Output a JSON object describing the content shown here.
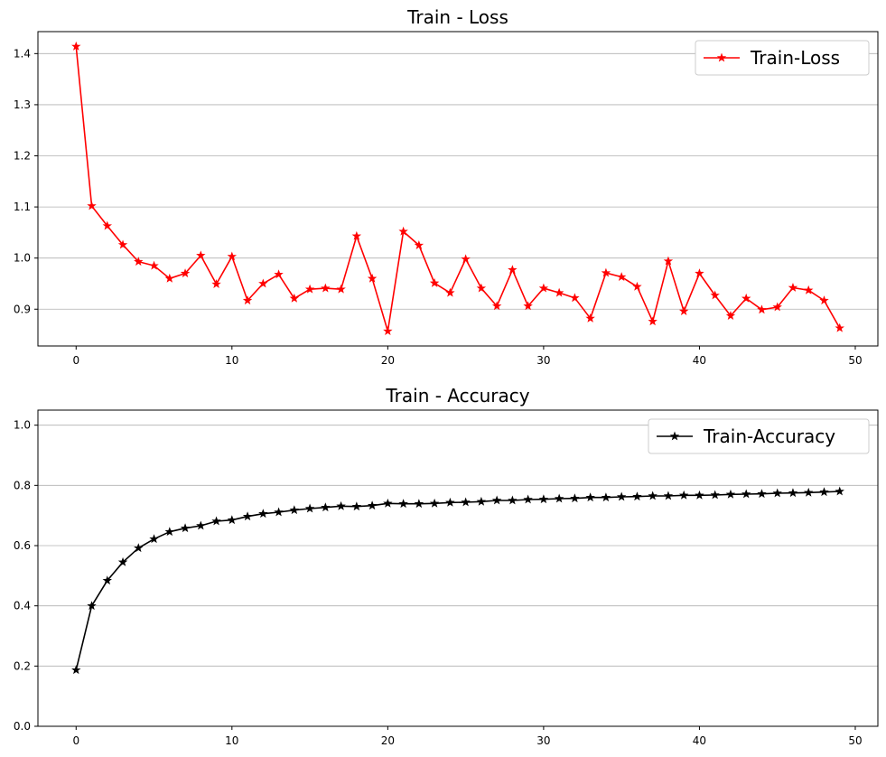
{
  "chart_data": [
    {
      "type": "line",
      "title": "Train - Loss",
      "xlabel": "",
      "ylabel": "",
      "xlim": [
        -2.45,
        51.45
      ],
      "ylim": [
        0.828,
        1.443
      ],
      "xticks": [
        0,
        10,
        20,
        30,
        40,
        50
      ],
      "yticks": [
        0.9,
        1.0,
        1.1,
        1.2,
        1.3,
        1.4
      ],
      "ytick_labels": [
        "0.9",
        "1.0",
        "1.1",
        "1.2",
        "1.3",
        "1.4"
      ],
      "grid": "y",
      "legend": "top-right",
      "series": [
        {
          "name": "Train-Loss",
          "color": "#ff0000",
          "marker": "star",
          "x": [
            0,
            1,
            2,
            3,
            4,
            5,
            6,
            7,
            8,
            9,
            10,
            11,
            12,
            13,
            14,
            15,
            16,
            17,
            18,
            19,
            20,
            21,
            22,
            23,
            24,
            25,
            26,
            27,
            28,
            29,
            30,
            31,
            32,
            33,
            34,
            35,
            36,
            37,
            38,
            39,
            40,
            41,
            42,
            43,
            44,
            45,
            46,
            47,
            48,
            49
          ],
          "values": [
            1.414,
            1.102,
            1.063,
            1.026,
            0.993,
            0.985,
            0.96,
            0.97,
            1.005,
            0.949,
            1.003,
            0.917,
            0.95,
            0.968,
            0.921,
            0.939,
            0.941,
            0.939,
            1.043,
            0.96,
            0.857,
            1.052,
            1.025,
            0.951,
            0.932,
            0.998,
            0.941,
            0.906,
            0.977,
            0.906,
            0.941,
            0.932,
            0.922,
            0.882,
            0.971,
            0.963,
            0.944,
            0.876,
            0.994,
            0.896,
            0.97,
            0.927,
            0.887,
            0.921,
            0.899,
            0.904,
            0.942,
            0.937,
            0.917,
            0.863
          ]
        }
      ]
    },
    {
      "type": "line",
      "title": "Train - Accuracy",
      "xlabel": "",
      "ylabel": "",
      "xlim": [
        -2.45,
        51.45
      ],
      "ylim": [
        0.0,
        1.05
      ],
      "xticks": [
        0,
        10,
        20,
        30,
        40,
        50
      ],
      "yticks": [
        0.0,
        0.2,
        0.4,
        0.6,
        0.8,
        1.0
      ],
      "ytick_labels": [
        "0.0",
        "0.2",
        "0.4",
        "0.6",
        "0.8",
        "1.0"
      ],
      "grid": "y",
      "legend": "top-right",
      "series": [
        {
          "name": "Train-Accuracy",
          "color": "#000000",
          "marker": "star",
          "x": [
            0,
            1,
            2,
            3,
            4,
            5,
            6,
            7,
            8,
            9,
            10,
            11,
            12,
            13,
            14,
            15,
            16,
            17,
            18,
            19,
            20,
            21,
            22,
            23,
            24,
            25,
            26,
            27,
            28,
            29,
            30,
            31,
            32,
            33,
            34,
            35,
            36,
            37,
            38,
            39,
            40,
            41,
            42,
            43,
            44,
            45,
            46,
            47,
            48,
            49
          ],
          "values": [
            0.187,
            0.4,
            0.484,
            0.545,
            0.592,
            0.622,
            0.646,
            0.658,
            0.666,
            0.681,
            0.685,
            0.697,
            0.706,
            0.711,
            0.718,
            0.723,
            0.727,
            0.731,
            0.73,
            0.733,
            0.74,
            0.739,
            0.739,
            0.74,
            0.743,
            0.744,
            0.746,
            0.75,
            0.75,
            0.753,
            0.754,
            0.756,
            0.757,
            0.76,
            0.76,
            0.762,
            0.763,
            0.765,
            0.765,
            0.767,
            0.767,
            0.768,
            0.77,
            0.771,
            0.772,
            0.774,
            0.775,
            0.776,
            0.778,
            0.78
          ]
        }
      ]
    }
  ]
}
